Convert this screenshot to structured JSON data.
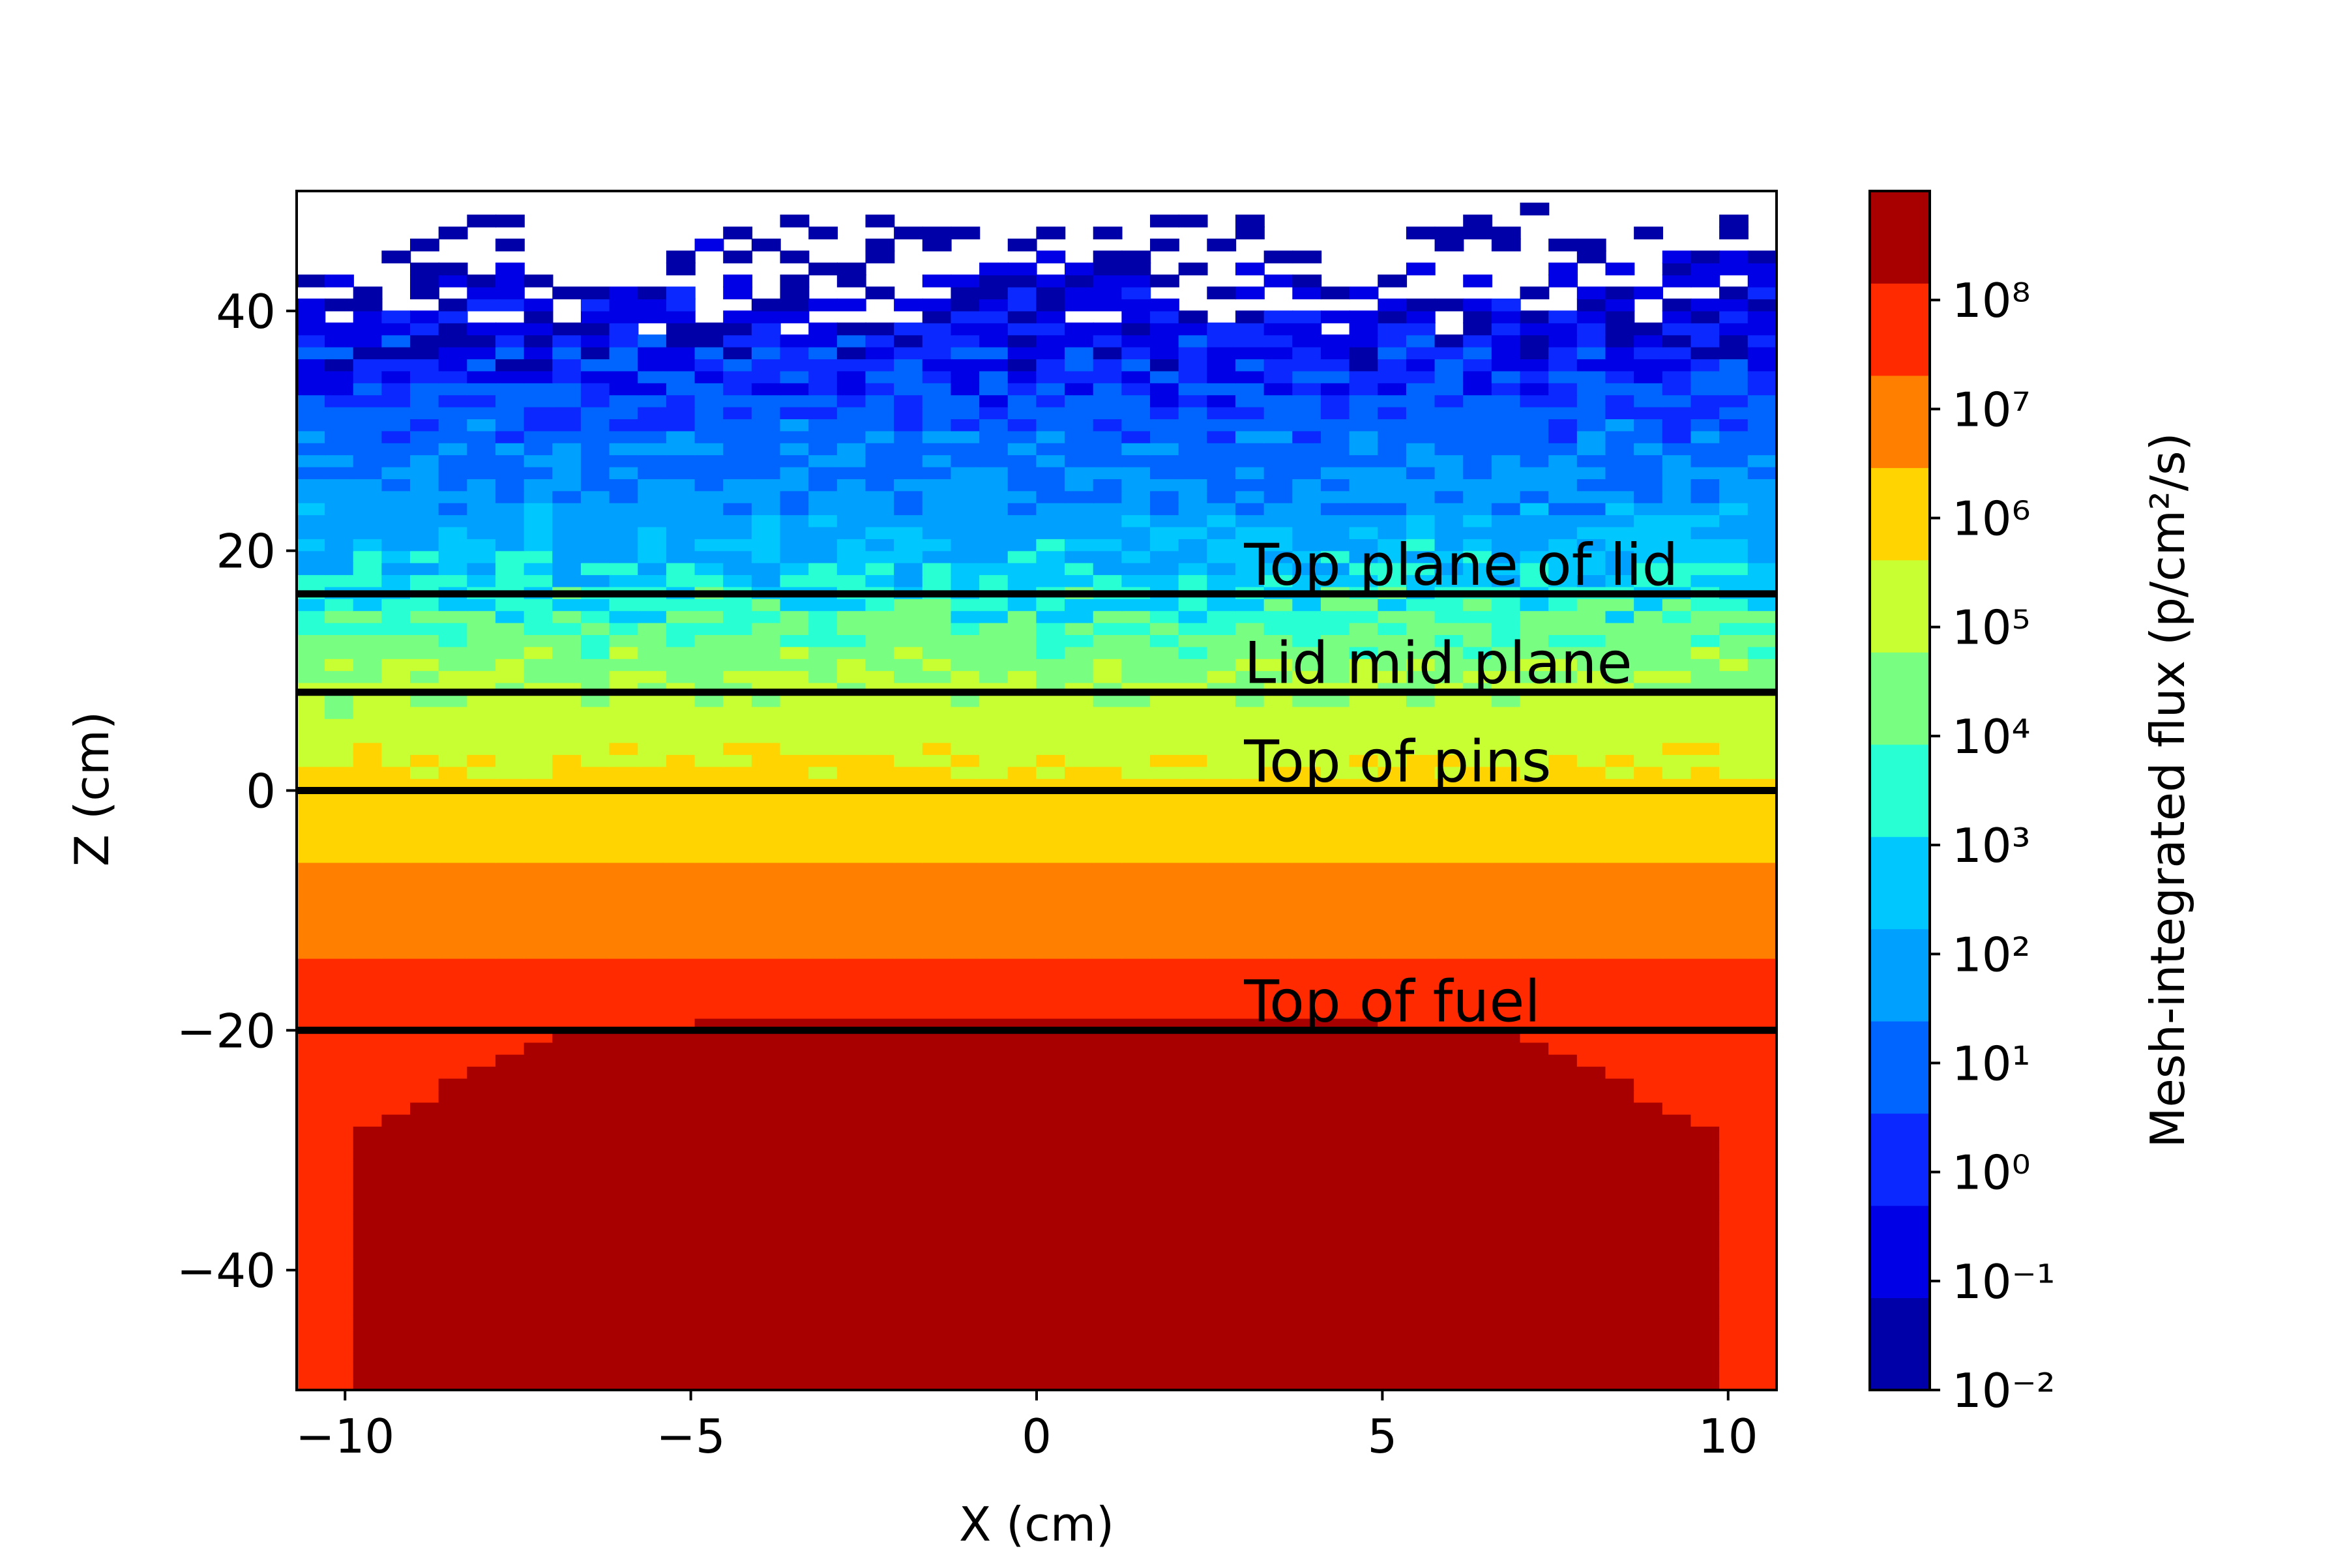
{
  "chart_data": {
    "type": "heatmap",
    "subtype": "filled-contour",
    "xlabel": "X (cm)",
    "ylabel": "Z (cm)",
    "xlim": [
      -10.7,
      10.7
    ],
    "ylim": [
      -50,
      50
    ],
    "x_ticks": [
      {
        "value": -10,
        "label": "−10"
      },
      {
        "value": -5,
        "label": "−5"
      },
      {
        "value": 0,
        "label": "0"
      },
      {
        "value": 5,
        "label": "5"
      },
      {
        "value": 10,
        "label": "10"
      }
    ],
    "y_ticks": [
      {
        "value": 40,
        "label": "40"
      },
      {
        "value": 20,
        "label": "20"
      },
      {
        "value": 0,
        "label": "0"
      },
      {
        "value": -20,
        "label": "−20"
      },
      {
        "value": -40,
        "label": "−40"
      }
    ],
    "colorbar": {
      "label": "Mesh-integrated flux (p/cm²/s)",
      "scale": "log",
      "level_exponents": [
        -2,
        -1.5,
        -1,
        -0.5,
        0,
        0.5,
        1,
        1.5,
        2,
        2.5,
        3,
        3.5,
        4,
        4.5,
        5,
        5.5,
        6,
        6.5,
        7,
        7.5,
        8,
        8.5,
        9
      ],
      "colormap": "jet",
      "band_colors": [
        "#0000a8",
        "#0000e6",
        "#0a28ff",
        "#0064ff",
        "#00a0ff",
        "#00c8ff",
        "#28ffd2",
        "#78ff82",
        "#c8ff32",
        "#ffd400",
        "#ff8000",
        "#ff2a00",
        "#a80000"
      ],
      "tick_labels": [
        {
          "exp": -2,
          "label": "10⁻²"
        },
        {
          "exp": -1,
          "label": "10⁻¹"
        },
        {
          "exp": 0,
          "label": "10⁰"
        },
        {
          "exp": 1,
          "label": "10¹"
        },
        {
          "exp": 2,
          "label": "10²"
        },
        {
          "exp": 3,
          "label": "10³"
        },
        {
          "exp": 4,
          "label": "10⁴"
        },
        {
          "exp": 5,
          "label": "10⁵"
        },
        {
          "exp": 6,
          "label": "10⁶"
        },
        {
          "exp": 7,
          "label": "10⁷"
        },
        {
          "exp": 8,
          "label": "10⁸"
        }
      ]
    },
    "horizontal_lines": [
      {
        "y": 16.4,
        "label": "Top plane of lid"
      },
      {
        "y": 8.2,
        "label": "Lid mid plane"
      },
      {
        "y": 0,
        "label": "Top of pins"
      },
      {
        "y": -20,
        "label": "Top of fuel"
      }
    ],
    "annotation_x": 3,
    "flux_regions": [
      {
        "z_range": [
          -50,
          -20
        ],
        "log10_flux": "8.5 to 9 (core, |x| < 9.5)"
      },
      {
        "z_range": [
          -14,
          -6
        ],
        "log10_flux": "6 to 7"
      },
      {
        "z_range": [
          -6,
          0
        ],
        "log10_flux": "5 to 6"
      },
      {
        "z_range": [
          0,
          8
        ],
        "log10_flux": "3 to 5"
      },
      {
        "z_range": [
          8,
          30
        ],
        "log10_flux": "1 to 3.5"
      },
      {
        "z_range": [
          30,
          50
        ],
        "log10_flux": "-1 to 1.5"
      }
    ]
  }
}
